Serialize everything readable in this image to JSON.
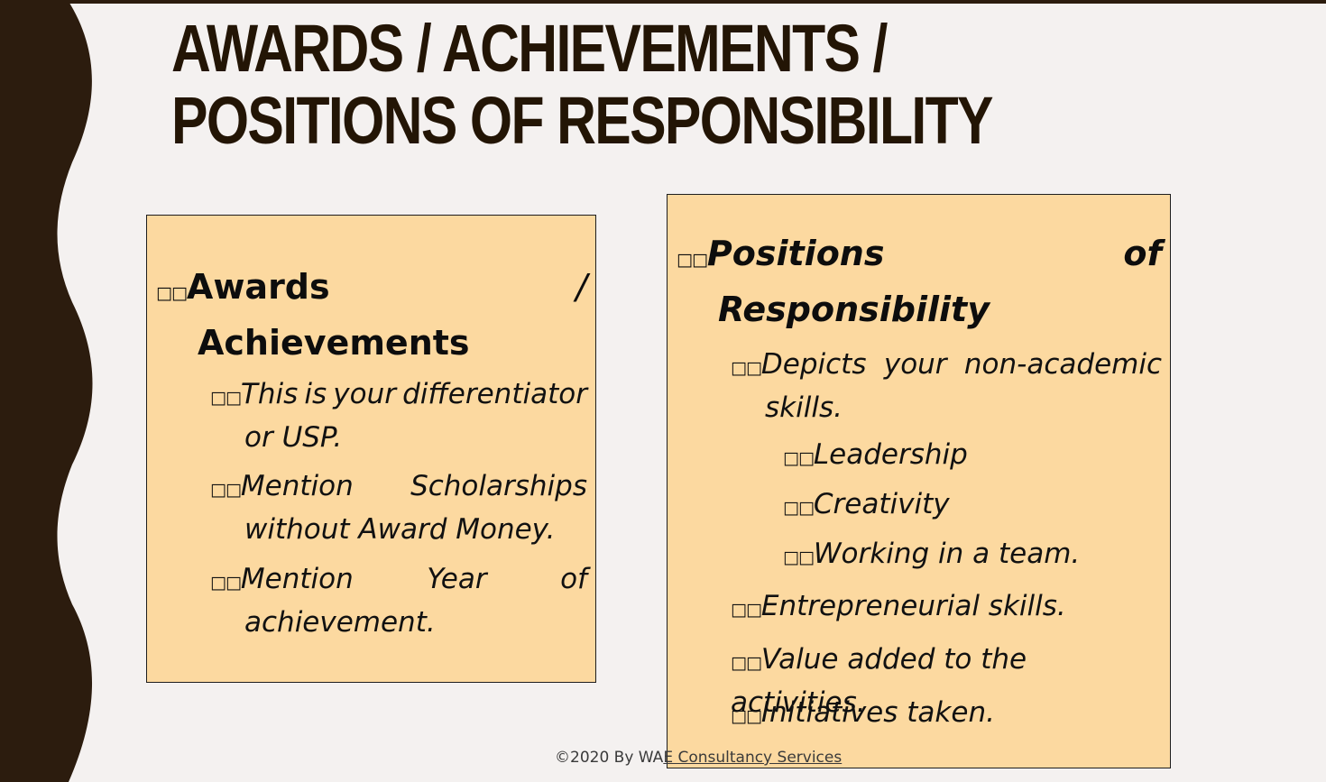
{
  "title": "AWARDS / ACHIEVEMENTS / POSITIONS OF RESPONSIBILITY",
  "bullet_glyph": "□□",
  "left_box": {
    "heading_line1": "Awards",
    "heading_sep": "/",
    "heading_line2": "Achievements",
    "items": [
      {
        "words": [
          "This",
          "is",
          "your",
          "differentiator"
        ],
        "cont": "or USP."
      },
      {
        "words": [
          "Mention",
          "Scholarships"
        ],
        "cont": "without Award Money."
      },
      {
        "words": [
          "Mention",
          "Year",
          "of"
        ],
        "cont": "achievement."
      }
    ]
  },
  "right_box": {
    "heading_line1": "Positions",
    "heading_of": "of",
    "heading_line2": "Responsibility",
    "items": [
      {
        "words": [
          "Depicts",
          "your",
          "non-academic"
        ],
        "cont": "skills."
      },
      {
        "text": "Leadership"
      },
      {
        "text": "Creativity"
      },
      {
        "text": "Working in a team."
      },
      {
        "text": "Entrepreneurial skills."
      },
      {
        "text": "Value added to the activities."
      },
      {
        "text": "Initiatives taken."
      }
    ]
  },
  "footer": {
    "prefix": "©2020 By WA",
    "underlined": "E Consultancy Services"
  },
  "colors": {
    "accent_dark": "#2c1c0e",
    "box_fill": "#fcd9a0",
    "background": "#f4f1f0"
  }
}
